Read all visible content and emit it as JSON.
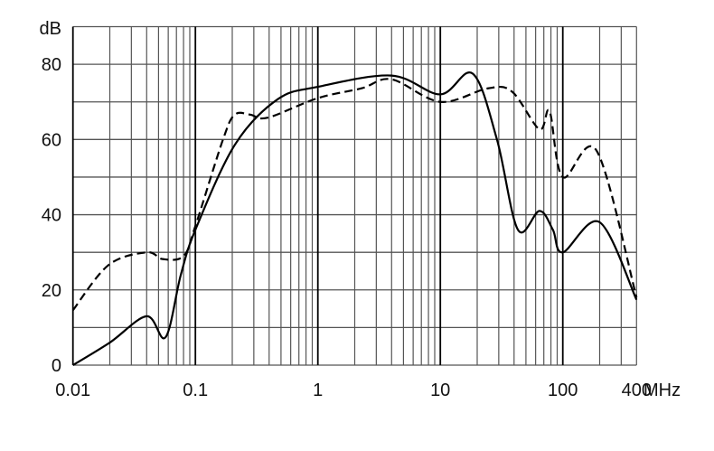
{
  "chart_data": {
    "type": "line",
    "title": "",
    "ylabel": "dB",
    "xlabel": "MHz",
    "x_scale": "log",
    "xlim": [
      0.01,
      400
    ],
    "ylim": [
      0,
      90
    ],
    "grid": true,
    "x_ticks": [
      0.01,
      0.1,
      1,
      10,
      100,
      400
    ],
    "x_tick_labels": [
      "0.01",
      "0.1",
      "1",
      "10",
      "100",
      "400"
    ],
    "y_ticks": [
      0,
      20,
      40,
      60,
      80
    ],
    "y_tick_labels": [
      "0",
      "20",
      "40",
      "60",
      "80"
    ],
    "series": [
      {
        "style": "solid",
        "color": "#000000",
        "x": [
          0.01,
          0.02,
          0.04,
          0.057,
          0.076,
          0.1,
          0.21,
          0.47,
          1,
          4,
          10,
          18.4,
          29,
          43,
          64.5,
          83,
          100,
          200,
          400
        ],
        "y": [
          0,
          6,
          13,
          7.4,
          24,
          36,
          58.6,
          70.7,
          74,
          77,
          72,
          77.5,
          60,
          36,
          41,
          36,
          30,
          38,
          17.4
        ]
      },
      {
        "style": "dashed",
        "color": "#000000",
        "x": [
          0.01,
          0.0195,
          0.04,
          0.054,
          0.08,
          0.1,
          0.168,
          0.21,
          0.28,
          0.39,
          1,
          2.27,
          4,
          10,
          24.5,
          38.6,
          64.5,
          78,
          100,
          189,
          400
        ],
        "y": [
          14.6,
          26.6,
          30,
          28.2,
          29,
          37,
          60,
          66.6,
          66.6,
          65.8,
          71,
          73.6,
          76,
          70,
          73.6,
          72.7,
          62.7,
          67.5,
          50,
          57,
          18
        ]
      }
    ]
  }
}
